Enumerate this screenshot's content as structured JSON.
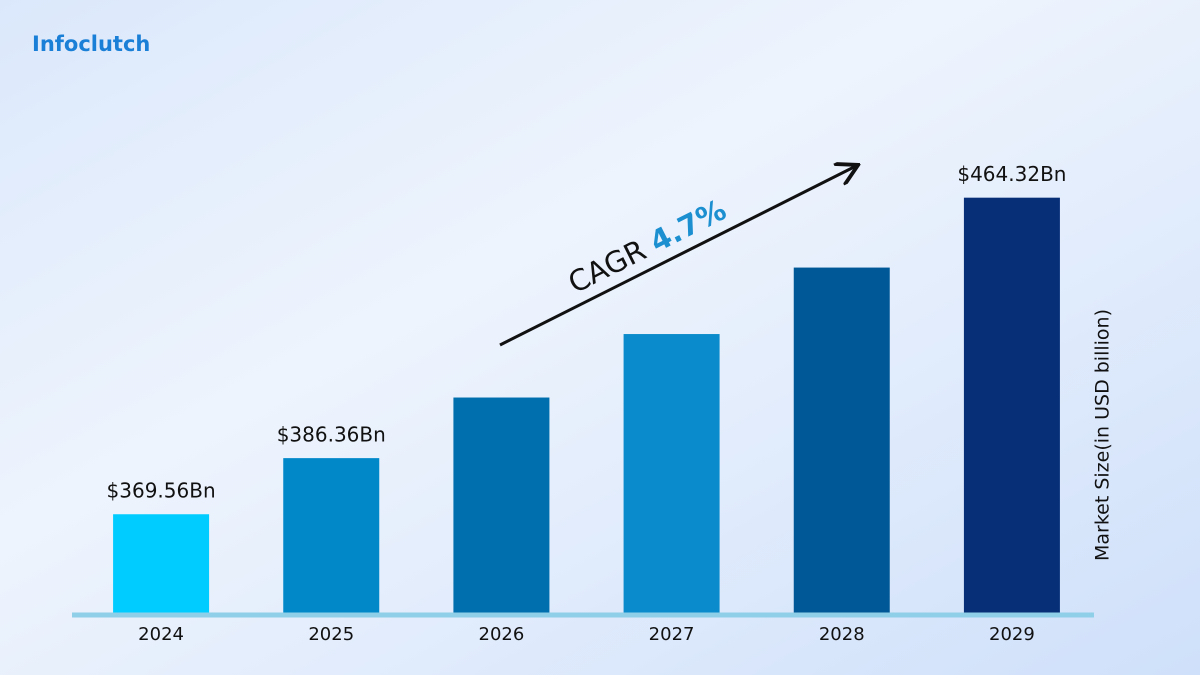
{
  "brand": "Infoclutch",
  "chart_data": {
    "type": "bar",
    "y_label": "Market Size(in USD billion)",
    "annotation": {
      "text": "CAGR",
      "value_text": "4.7%"
    },
    "categories": [
      "2024",
      "2025",
      "2026",
      "2027",
      "2028",
      "2029"
    ],
    "values": [
      369.56,
      386.36,
      404.5,
      423.5,
      443.4,
      464.32
    ],
    "value_labels": [
      "$369.56Bn",
      "$386.36Bn",
      null,
      null,
      null,
      "$464.32Bn"
    ],
    "colors": [
      "#00ccff",
      "#0088c9",
      "#006fad",
      "#0a8bcb",
      "#005896",
      "#072f78"
    ],
    "ylim": [
      340,
      475
    ]
  }
}
